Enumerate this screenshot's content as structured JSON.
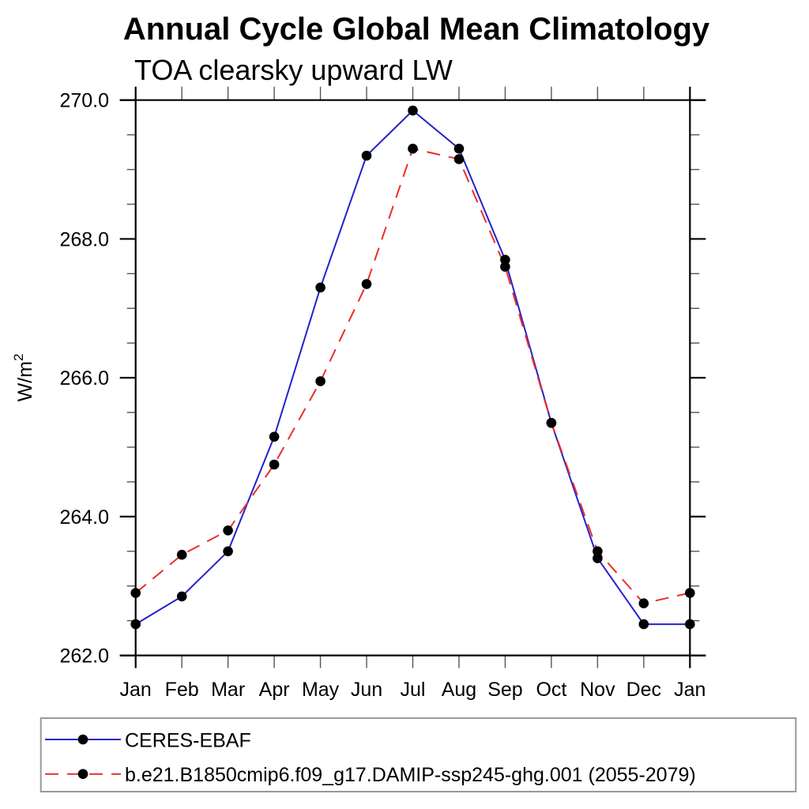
{
  "title": "Annual Cycle Global Mean Climatology",
  "subtitle": "TOA clearsky upward LW",
  "y_axis": {
    "unit_base": "W/m",
    "unit_exp": "2",
    "tick_labels": [
      "262.0",
      "264.0",
      "266.0",
      "268.0",
      "270.0"
    ]
  },
  "x_axis": {
    "labels": [
      "Jan",
      "Feb",
      "Mar",
      "Apr",
      "May",
      "Jun",
      "Jul",
      "Aug",
      "Sep",
      "Oct",
      "Nov",
      "Dec",
      "Jan"
    ]
  },
  "legend": {
    "items": [
      {
        "label": "CERES-EBAF",
        "color": "#2222cc",
        "line_style": "solid",
        "marker": "circle"
      },
      {
        "label": "b.e21.B1850cmip6.f09_g17.DAMIP-ssp245-ghg.001 (2055-2079)",
        "color": "#ee2c2c",
        "line_style": "dashed",
        "marker": "circle"
      }
    ]
  },
  "colors": {
    "obs_line": "#2222cc",
    "model_line": "#ee2c2c",
    "marker": "#000000",
    "axis": "#000000"
  },
  "chart_data": {
    "type": "line",
    "title": "Annual Cycle Global Mean Climatology",
    "subtitle": "TOA clearsky upward LW",
    "ylabel": "W/m^2",
    "xlabel": "",
    "x": [
      "Jan",
      "Feb",
      "Mar",
      "Apr",
      "May",
      "Jun",
      "Jul",
      "Aug",
      "Sep",
      "Oct",
      "Nov",
      "Dec",
      "Jan"
    ],
    "ylim": [
      262.0,
      270.0
    ],
    "ytick_major": [
      262.0,
      264.0,
      266.0,
      268.0,
      270.0
    ],
    "ytick_minor_step": 0.5,
    "grid": false,
    "legend_position": "bottom-left-box",
    "series": [
      {
        "name": "CERES-EBAF",
        "color": "#2222cc",
        "line_style": "solid",
        "marker": "circle",
        "values": [
          262.45,
          262.85,
          263.5,
          265.15,
          267.3,
          269.2,
          269.85,
          269.3,
          267.7,
          265.35,
          263.4,
          262.45,
          262.45
        ]
      },
      {
        "name": "b.e21.B1850cmip6.f09_g17.DAMIP-ssp245-ghg.001 (2055-2079)",
        "color": "#ee2c2c",
        "line_style": "dashed",
        "marker": "circle",
        "values": [
          262.9,
          263.45,
          263.8,
          264.75,
          265.95,
          267.35,
          269.3,
          269.15,
          267.6,
          265.35,
          263.5,
          262.75,
          262.9
        ]
      }
    ]
  }
}
